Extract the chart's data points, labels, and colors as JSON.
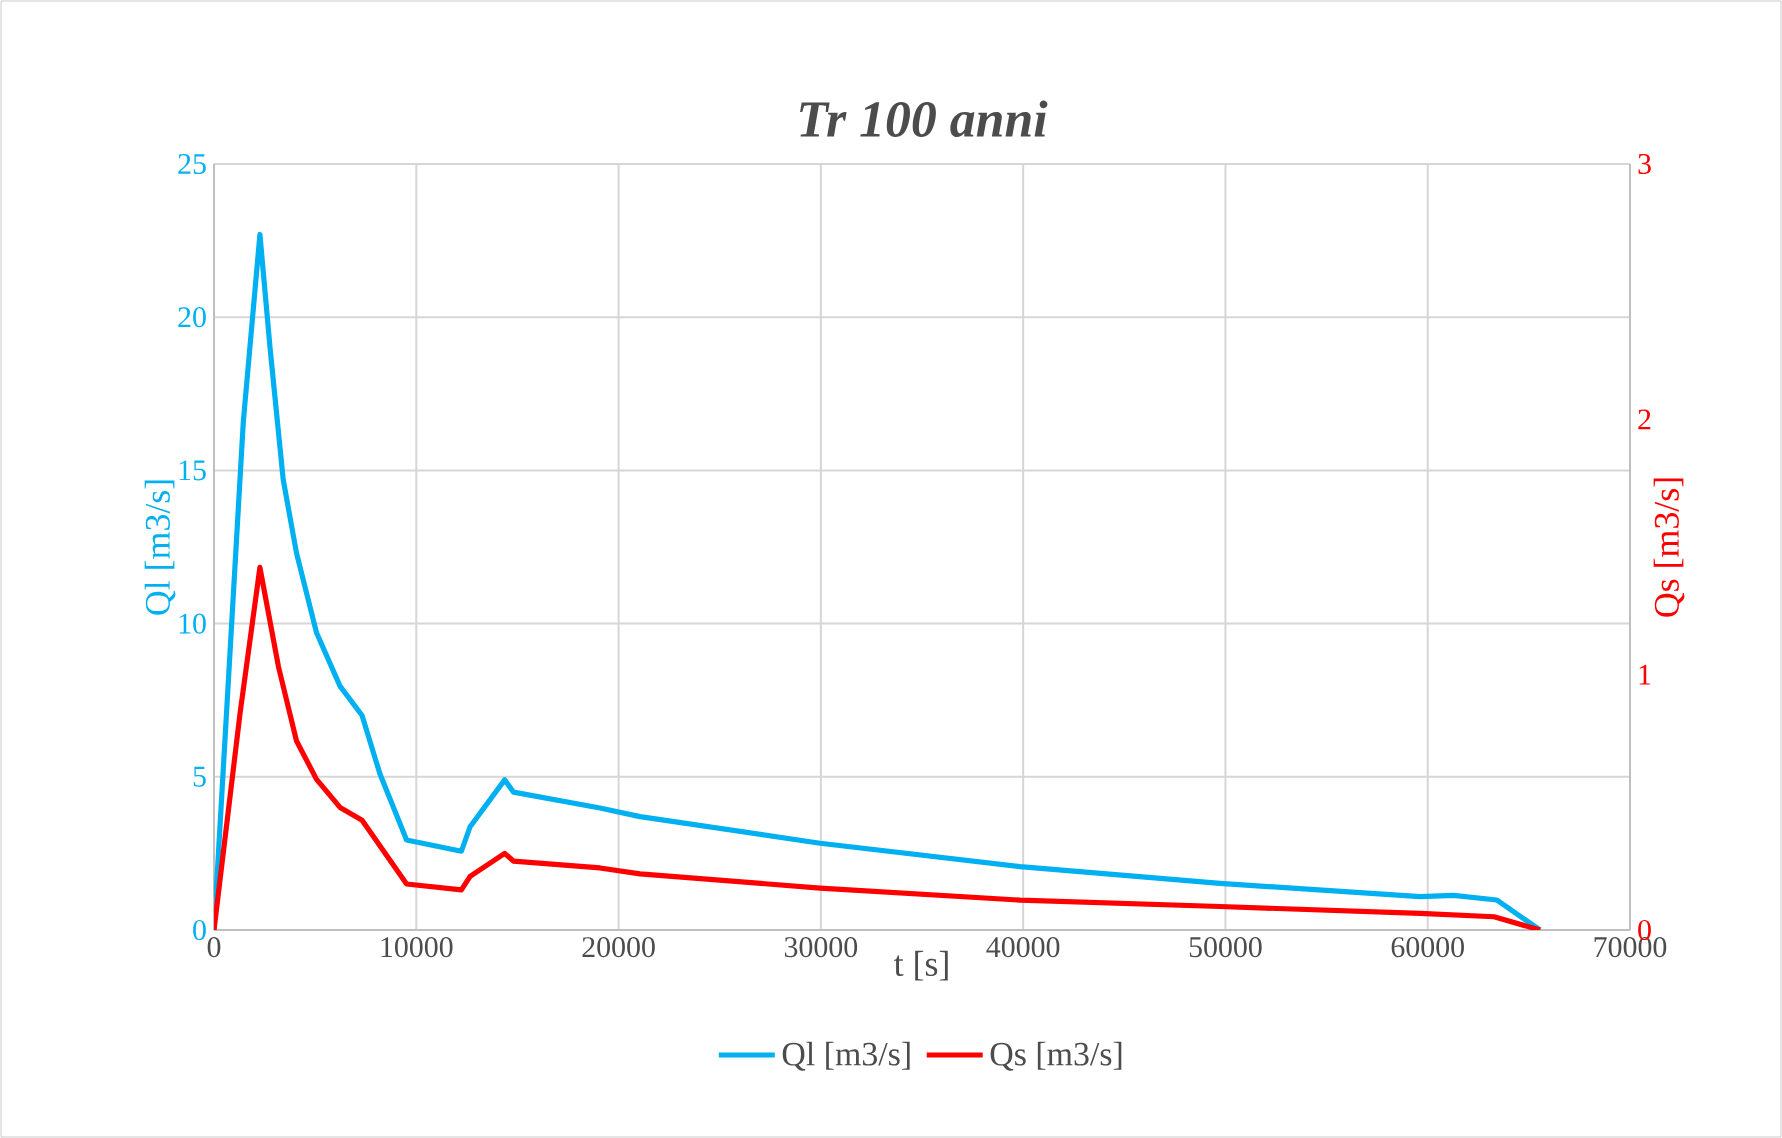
{
  "chart_data": {
    "type": "line",
    "title": "Tr 100 anni",
    "xlabel": "t [s]",
    "ylabel": "Ql [m3/s]",
    "y2label": "Qs [m3/s]",
    "xlim": [
      0,
      70000
    ],
    "xticks": [
      0,
      10000,
      20000,
      30000,
      40000,
      50000,
      60000,
      70000
    ],
    "ylim": [
      0,
      25
    ],
    "yticks": [
      0,
      5,
      10,
      15,
      20,
      25
    ],
    "y2lim": [
      0,
      3
    ],
    "y2ticks": [
      0,
      1,
      2,
      3
    ],
    "grid": true,
    "legend": "bottom",
    "marker": "none",
    "line_style": "solid",
    "series": [
      {
        "name": "Ql [m3/s]",
        "color": "#00b0f0",
        "x": [
          0,
          1450,
          2270,
          2770,
          3420,
          4080,
          5070,
          6230,
          7320,
          8200,
          9520,
          12230,
          12660,
          14370,
          14800,
          19080,
          21060,
          29960,
          39850,
          49730,
          59620,
          61270,
          63410,
          65550
        ],
        "values": [
          0,
          16.6,
          22.7,
          19.0,
          14.7,
          12.3,
          9.7,
          7.96,
          7.0,
          5.1,
          2.94,
          2.57,
          3.37,
          4.9,
          4.5,
          3.98,
          3.7,
          2.83,
          2.07,
          1.52,
          1.09,
          1.13,
          0.98,
          0
        ]
      },
      {
        "name": "Qs [m3/s]",
        "color": "#ff0000",
        "axis": "y2",
        "x": [
          0,
          1290,
          2270,
          3190,
          4080,
          5070,
          6230,
          7320,
          9520,
          12230,
          12660,
          14370,
          14800,
          19080,
          21060,
          29960,
          39850,
          49730,
          59620,
          63280,
          65550
        ],
        "values": [
          0,
          0.85,
          1.42,
          1.03,
          0.74,
          0.59,
          0.48,
          0.43,
          0.18,
          0.157,
          0.21,
          0.3,
          0.27,
          0.243,
          0.22,
          0.164,
          0.117,
          0.092,
          0.065,
          0.052,
          0
        ]
      }
    ]
  }
}
